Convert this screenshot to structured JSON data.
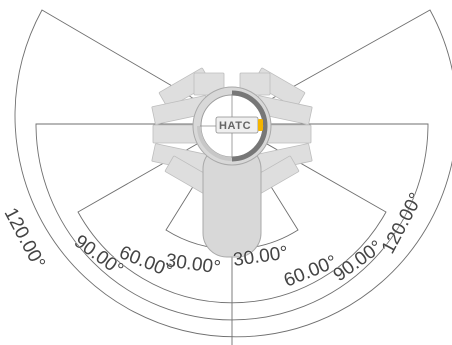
{
  "angle_labels": {
    "left_120": "120.00°",
    "left_90": "90.00°",
    "left_60": "60.00°",
    "left_30": "30.00°",
    "right_30": "30.00°",
    "right_60": "60.00°",
    "right_90": "90.00°",
    "right_120": "120.00°"
  },
  "logo_text": "HATC",
  "colors": {
    "outline": "#6f6f6f",
    "device_fill": "#d8d8d8",
    "fan_fill": "#dedede",
    "accent": "#f4b400",
    "logo_dark": "#666666"
  }
}
